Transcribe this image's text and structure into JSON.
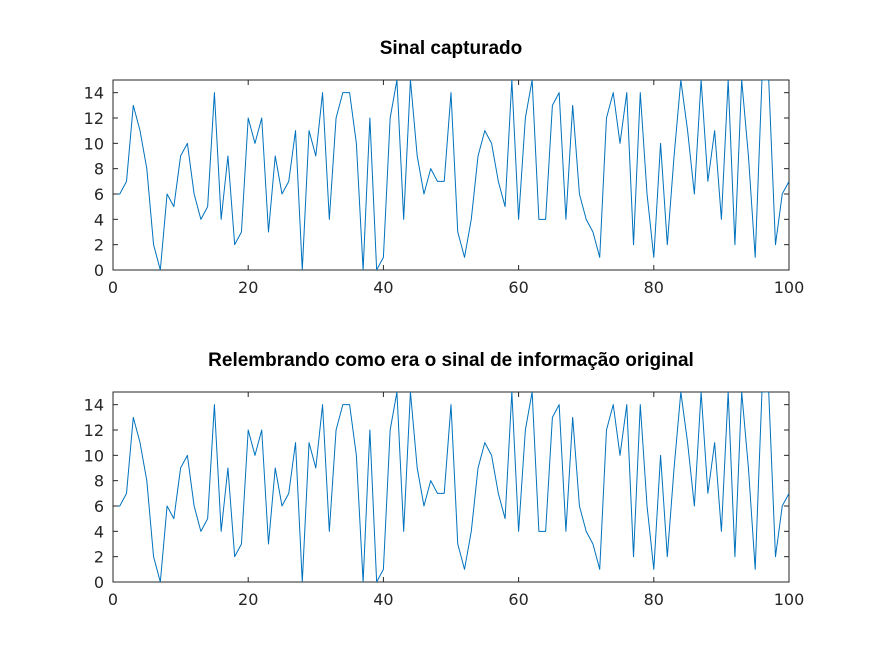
{
  "chart_data": [
    {
      "type": "line",
      "title": "Sinal capturado",
      "xlabel": "",
      "ylabel": "",
      "xlim": [
        0,
        100
      ],
      "ylim": [
        0,
        15
      ],
      "xticks": [
        0,
        20,
        40,
        60,
        80,
        100
      ],
      "yticks": [
        0,
        2,
        4,
        6,
        8,
        10,
        12,
        14
      ],
      "grid": false,
      "color": "#0072bd",
      "series": [
        {
          "x": [
            0,
            1,
            2,
            3,
            4,
            5,
            6,
            7,
            8,
            9,
            10,
            11,
            12,
            13,
            14,
            15,
            16,
            17,
            18,
            19,
            20,
            21,
            22,
            23,
            24,
            25,
            26,
            27,
            28,
            29,
            30,
            31,
            32,
            33,
            34,
            35,
            36,
            37,
            38,
            39,
            40,
            41,
            42,
            43,
            44,
            45,
            46,
            47,
            48,
            49,
            50,
            51,
            52,
            53,
            54,
            55,
            56,
            57,
            58,
            59,
            60,
            61,
            62,
            63,
            64,
            65,
            66,
            67,
            68,
            69,
            70,
            71,
            72,
            73,
            74,
            75,
            76,
            77,
            78,
            79,
            80,
            81,
            82,
            83,
            84,
            85,
            86,
            87,
            88,
            89,
            90,
            91,
            92,
            93,
            94,
            95,
            96,
            97,
            98,
            99,
            100
          ],
          "values": [
            6,
            6,
            7,
            13,
            11,
            8,
            2,
            0,
            6,
            5,
            9,
            10,
            6,
            4,
            5,
            14,
            4,
            9,
            2,
            3,
            12,
            10,
            12,
            3,
            9,
            6,
            7,
            11,
            0,
            11,
            9,
            14,
            4,
            12,
            14,
            14,
            10,
            0,
            12,
            0,
            1,
            12,
            15,
            4,
            15,
            9,
            6,
            8,
            7,
            7,
            14,
            3,
            1,
            4,
            9,
            11,
            10,
            7,
            5,
            15,
            4,
            12,
            15,
            4,
            4,
            13,
            14,
            4,
            13,
            6,
            4,
            3,
            1,
            12,
            14,
            10,
            14,
            2,
            14,
            6,
            1,
            10,
            2,
            9,
            15,
            11,
            6,
            15,
            7,
            11,
            4,
            15,
            2,
            15,
            9,
            1,
            15,
            15,
            2,
            6,
            7
          ]
        }
      ]
    },
    {
      "type": "line",
      "title": "Relembrando como era o sinal de informação original",
      "xlabel": "",
      "ylabel": "",
      "xlim": [
        0,
        100
      ],
      "ylim": [
        0,
        15
      ],
      "xticks": [
        0,
        20,
        40,
        60,
        80,
        100
      ],
      "yticks": [
        0,
        2,
        4,
        6,
        8,
        10,
        12,
        14
      ],
      "grid": false,
      "color": "#0072bd",
      "series": [
        {
          "x": [
            0,
            1,
            2,
            3,
            4,
            5,
            6,
            7,
            8,
            9,
            10,
            11,
            12,
            13,
            14,
            15,
            16,
            17,
            18,
            19,
            20,
            21,
            22,
            23,
            24,
            25,
            26,
            27,
            28,
            29,
            30,
            31,
            32,
            33,
            34,
            35,
            36,
            37,
            38,
            39,
            40,
            41,
            42,
            43,
            44,
            45,
            46,
            47,
            48,
            49,
            50,
            51,
            52,
            53,
            54,
            55,
            56,
            57,
            58,
            59,
            60,
            61,
            62,
            63,
            64,
            65,
            66,
            67,
            68,
            69,
            70,
            71,
            72,
            73,
            74,
            75,
            76,
            77,
            78,
            79,
            80,
            81,
            82,
            83,
            84,
            85,
            86,
            87,
            88,
            89,
            90,
            91,
            92,
            93,
            94,
            95,
            96,
            97,
            98,
            99,
            100
          ],
          "values": [
            6,
            6,
            7,
            13,
            11,
            8,
            2,
            0,
            6,
            5,
            9,
            10,
            6,
            4,
            5,
            14,
            4,
            9,
            2,
            3,
            12,
            10,
            12,
            3,
            9,
            6,
            7,
            11,
            0,
            11,
            9,
            14,
            4,
            12,
            14,
            14,
            10,
            0,
            12,
            0,
            1,
            12,
            15,
            4,
            15,
            9,
            6,
            8,
            7,
            7,
            14,
            3,
            1,
            4,
            9,
            11,
            10,
            7,
            5,
            15,
            4,
            12,
            15,
            4,
            4,
            13,
            14,
            4,
            13,
            6,
            4,
            3,
            1,
            12,
            14,
            10,
            14,
            2,
            14,
            6,
            1,
            10,
            2,
            9,
            15,
            11,
            6,
            15,
            7,
            11,
            4,
            15,
            2,
            15,
            9,
            1,
            15,
            15,
            2,
            6,
            7
          ]
        }
      ]
    }
  ]
}
